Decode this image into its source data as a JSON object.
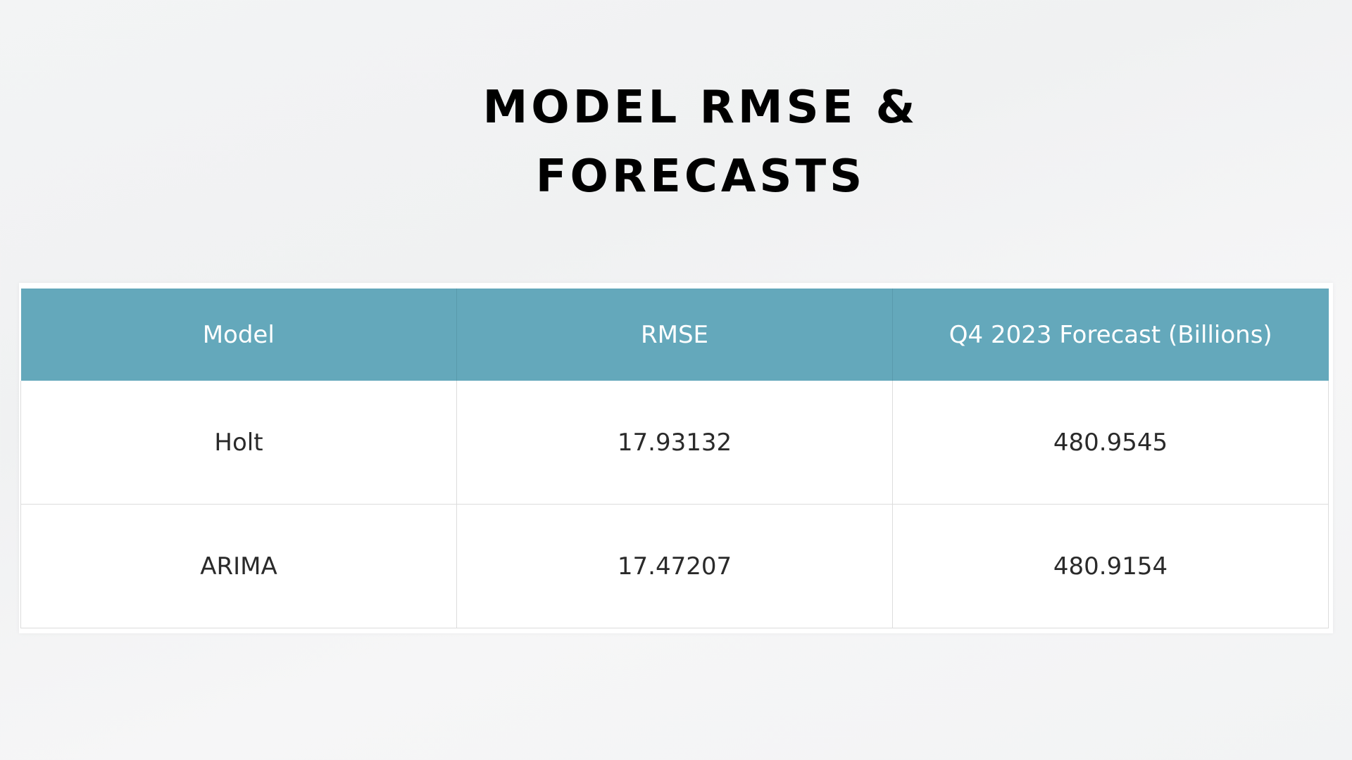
{
  "slide": {
    "title_line1": "MODEL RMSE &",
    "title_line2": "FORECASTS"
  },
  "table": {
    "headers": [
      "Model",
      "RMSE",
      "Q4 2023 Forecast (Billions)"
    ],
    "rows": [
      [
        "Holt",
        "17.93132",
        "480.9545"
      ],
      [
        "ARIMA",
        "17.47207",
        "480.9154"
      ]
    ],
    "colors": {
      "header_background": "#64a8bb",
      "header_text": "#ffffff",
      "cell_text": "#2a2a2a",
      "border": "#dcdcdc"
    }
  }
}
